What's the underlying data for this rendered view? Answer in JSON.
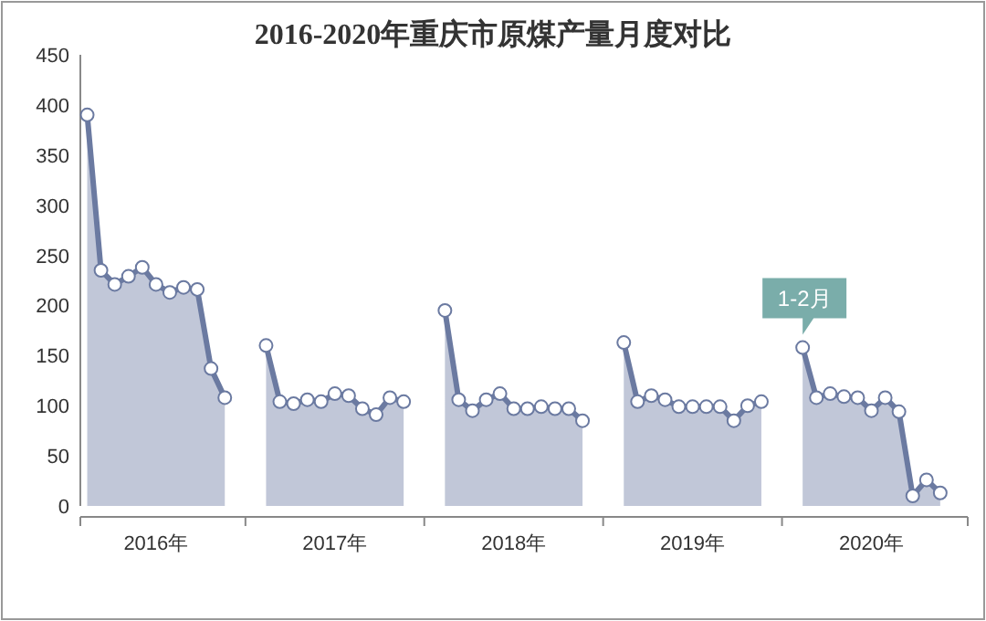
{
  "chart_data": {
    "type": "area",
    "title": "2016-2020年重庆市原煤产量月度对比",
    "marker": "circle",
    "grid": false,
    "categories": [
      null,
      null,
      null,
      null,
      null,
      "2016年",
      null,
      null,
      null,
      null,
      null,
      null,
      null,
      null,
      null,
      null,
      null,
      null,
      "2017年",
      null,
      null,
      null,
      null,
      null,
      null,
      null,
      null,
      null,
      null,
      null,
      null,
      "2018年",
      null,
      null,
      null,
      null,
      null,
      null,
      null,
      null,
      null,
      null,
      null,
      null,
      "2019年",
      null,
      null,
      null,
      null,
      null,
      null,
      null,
      null,
      null,
      null,
      null,
      null,
      "2020年",
      null,
      null,
      null,
      null,
      null
    ],
    "ylim": [
      0,
      450
    ],
    "yticks": [
      0,
      50,
      100,
      150,
      200,
      250,
      300,
      350,
      400,
      450
    ],
    "series": [
      {
        "color": "#6b7aa1",
        "values": [
          390,
          235,
          221,
          229,
          238,
          221,
          213,
          218,
          216,
          137,
          108,
          null,
          null,
          160,
          104,
          102,
          106,
          104,
          112,
          110,
          97,
          91,
          108,
          104,
          null,
          null,
          195,
          106,
          95,
          106,
          112,
          97,
          97,
          99,
          97,
          97,
          85,
          null,
          null,
          163,
          104,
          110,
          106,
          99,
          99,
          99,
          99,
          85,
          100,
          104,
          null,
          null,
          158,
          108,
          112,
          109,
          108,
          95,
          108,
          94,
          10,
          26,
          13
        ]
      }
    ],
    "annotations": [
      "1-2月"
    ]
  }
}
